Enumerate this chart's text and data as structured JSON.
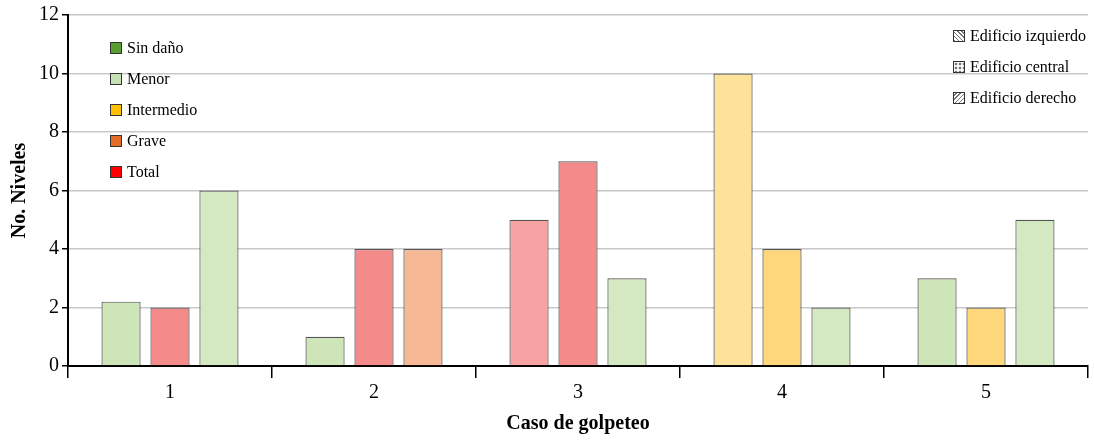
{
  "chart_data": {
    "type": "bar",
    "xlabel": "Caso de golpeteo",
    "ylabel": "No. Niveles",
    "categories": [
      "1",
      "2",
      "3",
      "4",
      "5"
    ],
    "series": [
      {
        "name": "Sin daño",
        "color": "#5a9e2f",
        "values": [
          null,
          null,
          null,
          null,
          null
        ]
      },
      {
        "name": "Menor",
        "color": "#c6e0b4",
        "values": [
          null,
          null,
          null,
          null,
          null
        ]
      },
      {
        "name": "Intermedio",
        "color": "#ffc000",
        "values": [
          null,
          null,
          null,
          null,
          null
        ]
      },
      {
        "name": "Grave",
        "color": "#e36c25",
        "values": [
          null,
          null,
          null,
          null,
          null
        ]
      },
      {
        "name": "Total",
        "color": "#ff0000",
        "values": [
          null,
          null,
          null,
          null,
          null
        ]
      },
      {
        "name": "Edificio izquierdo",
        "colors": [
          "#cde5b8",
          "#cde5b8",
          "#f7a3a3",
          "#fde29a",
          "#cde5b8"
        ],
        "values": [
          2.2,
          1,
          5,
          10,
          3
        ]
      },
      {
        "name": "Edificio central",
        "colors": [
          "#f58a8a",
          "#f58a8a",
          "#f58a8a",
          "#fdd77a",
          "#fdd77a"
        ],
        "values": [
          2,
          4,
          7,
          4,
          2
        ]
      },
      {
        "name": "Edificio derecho",
        "colors": [
          "#d4e8c2",
          "#f7b895",
          "#d4e8c2",
          "#d4e8c2",
          "#d4e8c2"
        ],
        "values": [
          6,
          4,
          3,
          2,
          5
        ]
      }
    ],
    "ylim": [
      0,
      12
    ],
    "yticks": [
      0,
      2,
      4,
      6,
      8,
      10,
      12
    ],
    "grid": "y",
    "legend": "top left"
  }
}
